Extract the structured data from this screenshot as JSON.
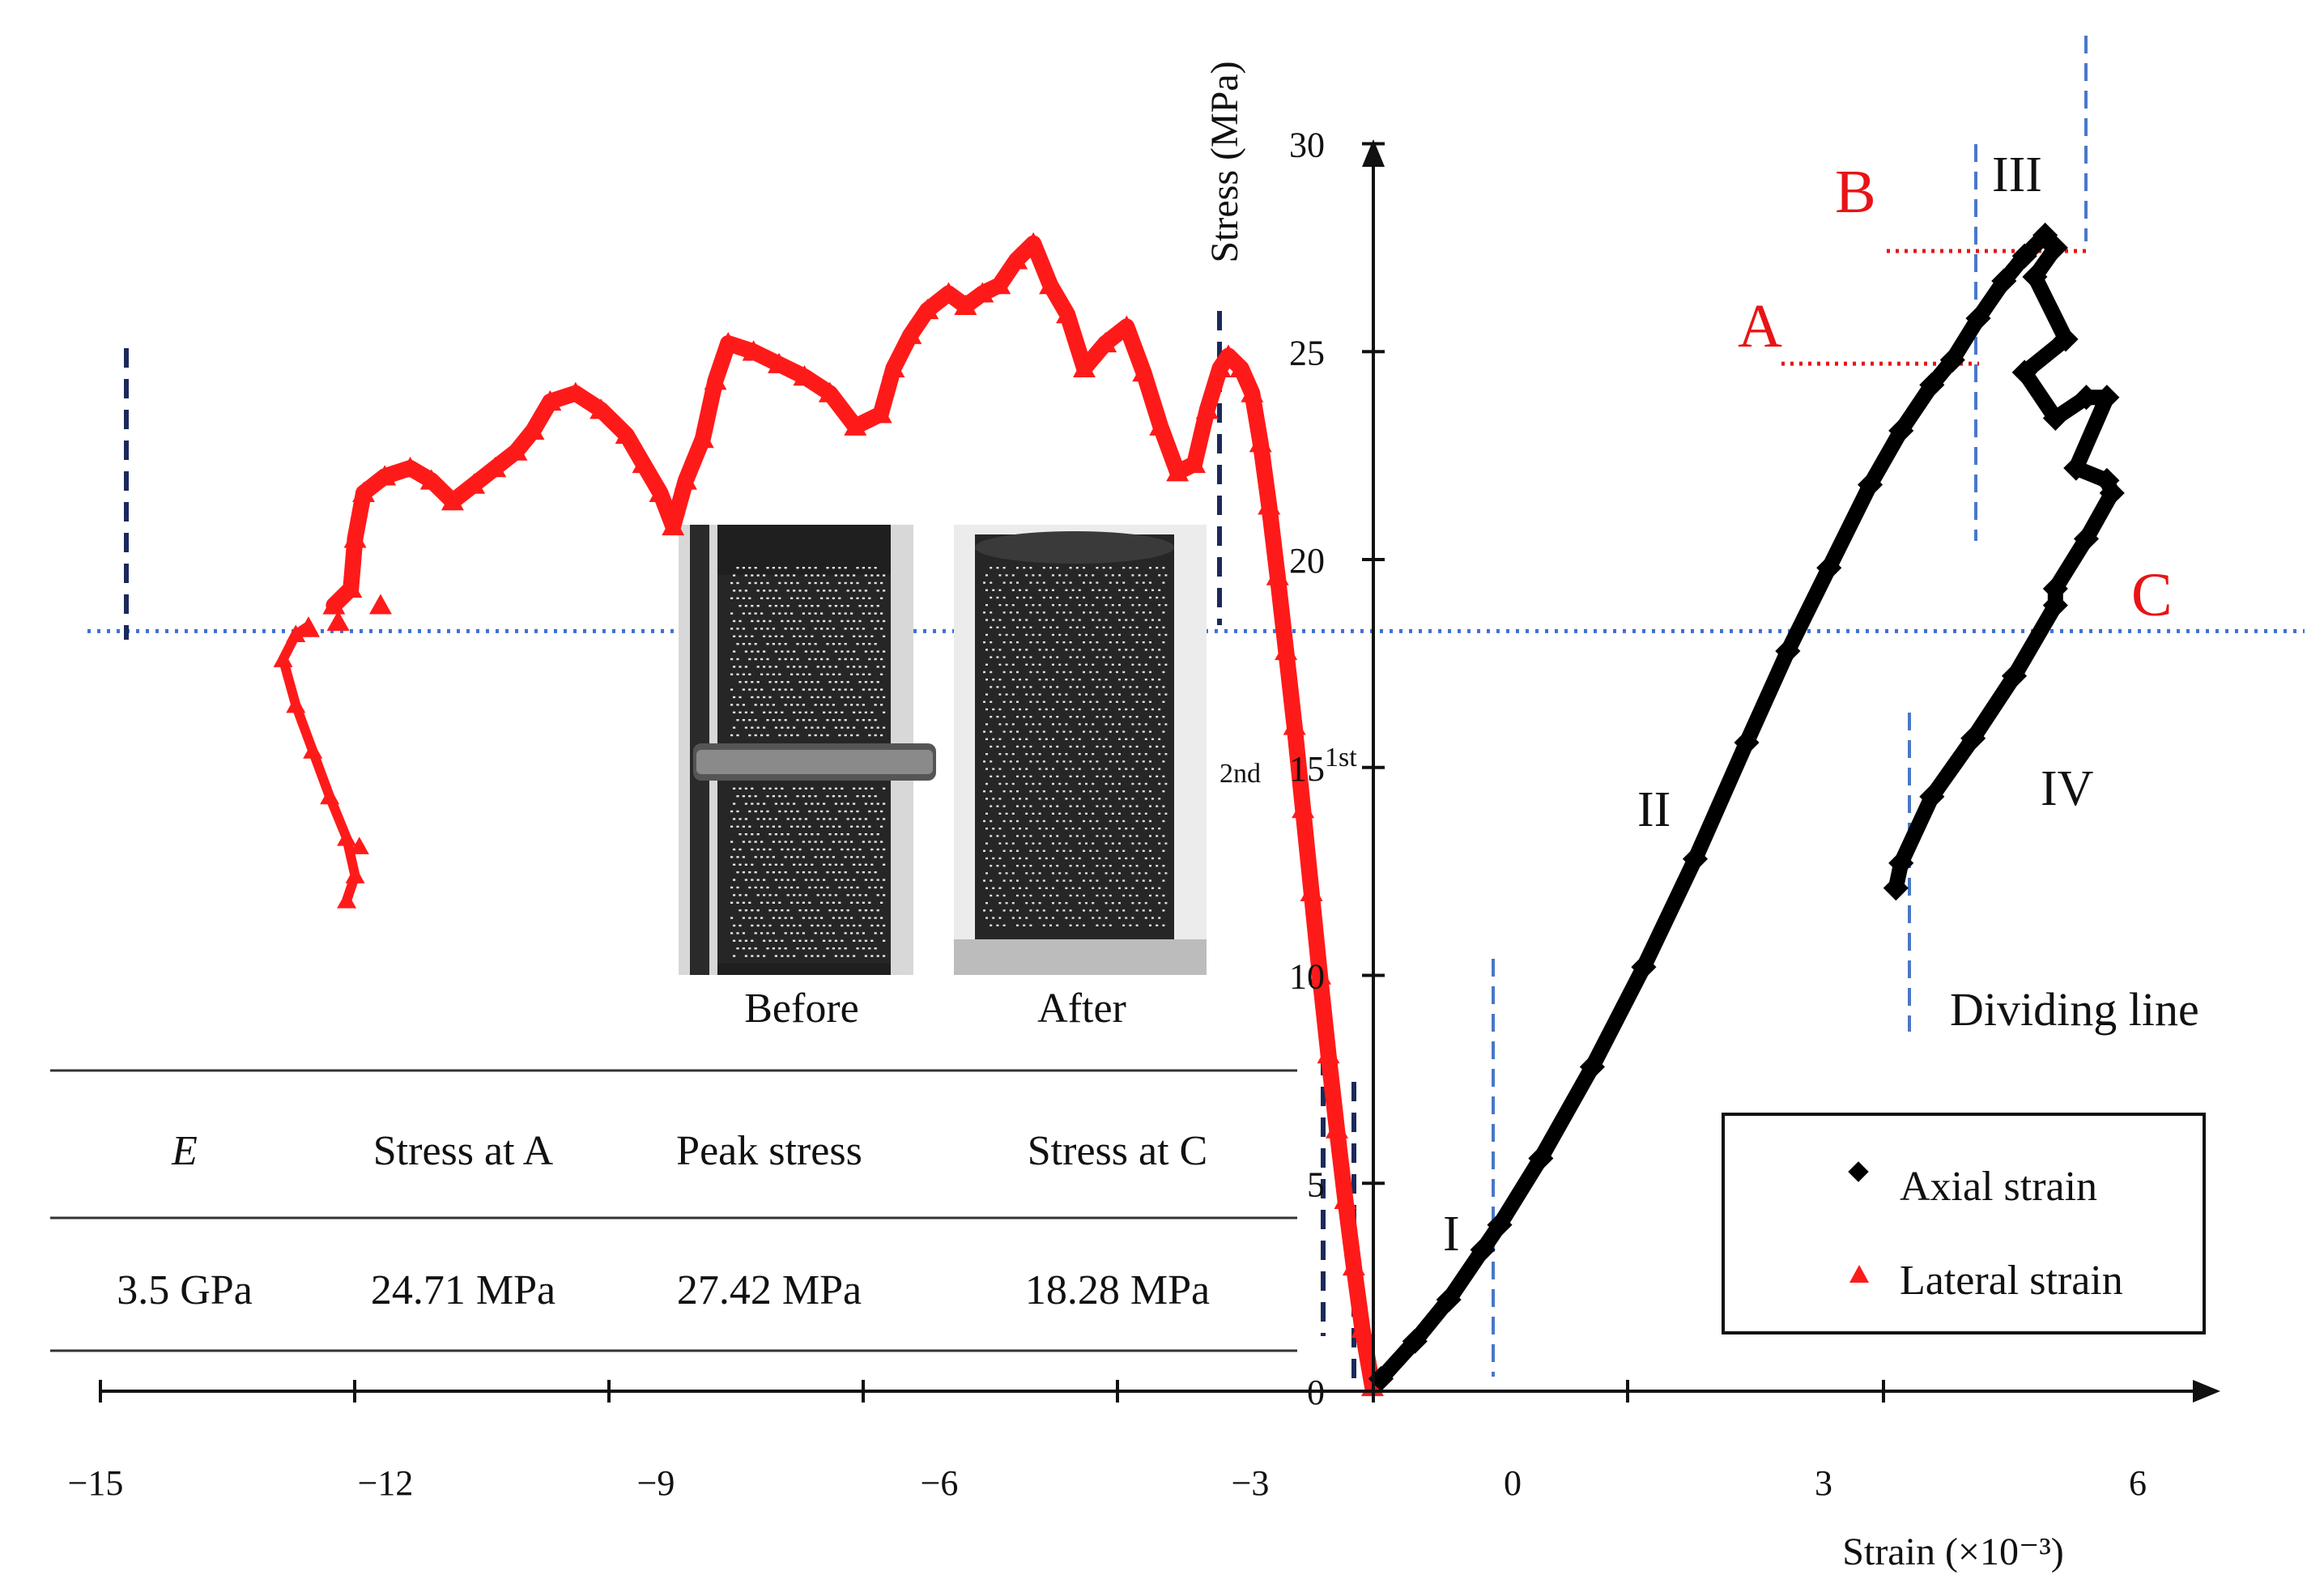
{
  "colors": {
    "axial": "#000000",
    "lateral": "#ff1a1a",
    "annotation_red": "#e81416",
    "dividing_line_blue": "#4a78c8",
    "threshold_blue": "#3f6fd6",
    "navy_dashed": "#1b2a5a"
  },
  "chart_data": {
    "type": "scatter",
    "xlabel": "Strain (×10⁻³)",
    "ylabel": "Stress (MPa)",
    "xlim": [
      -15,
      6.5
    ],
    "ylim": [
      0,
      30
    ],
    "x_ticks": [
      "−15",
      "−12",
      "−9",
      "−6",
      "−3",
      "0",
      "3",
      "6"
    ],
    "y_ticks": [
      "0",
      "5",
      "10",
      "15",
      "20",
      "25",
      "30"
    ],
    "grid": false,
    "legend_position": "bottom-right",
    "legend": [
      "Axial strain",
      "Lateral strain"
    ],
    "series": [
      {
        "name": "Axial strain",
        "marker": "diamond",
        "points": [
          [
            -1.4,
            0.3
          ],
          [
            -1.0,
            1.2
          ],
          [
            -0.6,
            2.2
          ],
          [
            -0.2,
            3.4
          ],
          [
            0.0,
            4.0
          ],
          [
            0.4,
            5.6
          ],
          [
            0.9,
            7.8
          ],
          [
            1.4,
            10.2
          ],
          [
            1.9,
            12.8
          ],
          [
            2.4,
            15.6
          ],
          [
            2.8,
            17.8
          ],
          [
            3.2,
            19.8
          ],
          [
            3.6,
            21.8
          ],
          [
            3.9,
            23.1
          ],
          [
            4.2,
            24.2
          ],
          [
            4.4,
            24.8
          ],
          [
            4.65,
            25.8
          ],
          [
            4.9,
            26.7
          ],
          [
            5.1,
            27.3
          ],
          [
            5.3,
            27.8
          ],
          [
            5.4,
            27.5
          ],
          [
            5.2,
            26.8
          ],
          [
            5.5,
            25.3
          ],
          [
            5.1,
            24.5
          ],
          [
            5.4,
            23.4
          ],
          [
            5.7,
            23.9
          ],
          [
            5.9,
            23.9
          ],
          [
            5.6,
            22.2
          ],
          [
            5.9,
            21.9
          ],
          [
            5.95,
            21.6
          ],
          [
            5.7,
            20.5
          ],
          [
            5.4,
            19.3
          ],
          [
            5.4,
            18.9
          ],
          [
            5.0,
            17.2
          ],
          [
            4.6,
            15.7
          ],
          [
            4.2,
            14.3
          ],
          [
            3.9,
            12.7
          ],
          [
            3.85,
            12.1
          ]
        ]
      },
      {
        "name": "Lateral strain",
        "marker": "triangle",
        "points": [
          [
            -1.5,
            0.1
          ],
          [
            -1.62,
            1.5
          ],
          [
            -1.72,
            3.0
          ],
          [
            -1.82,
            4.6
          ],
          [
            -1.92,
            6.3
          ],
          [
            -2.02,
            8.1
          ],
          [
            -2.12,
            10.0
          ],
          [
            -2.22,
            12.0
          ],
          [
            -2.32,
            14.0
          ],
          [
            -2.42,
            16.0
          ],
          [
            -2.52,
            17.8
          ],
          [
            -2.62,
            19.6
          ],
          [
            -2.72,
            21.3
          ],
          [
            -2.82,
            22.8
          ],
          [
            -2.92,
            24.0
          ],
          [
            -3.05,
            24.6
          ],
          [
            -3.2,
            24.9
          ],
          [
            -3.3,
            24.6
          ],
          [
            -3.45,
            23.6
          ],
          [
            -3.6,
            22.3
          ],
          [
            -3.8,
            22.1
          ],
          [
            -4.0,
            23.2
          ],
          [
            -4.2,
            24.5
          ],
          [
            -4.4,
            25.6
          ],
          [
            -4.65,
            25.2
          ],
          [
            -4.9,
            24.6
          ],
          [
            -5.1,
            25.9
          ],
          [
            -5.3,
            26.6
          ],
          [
            -5.5,
            27.6
          ],
          [
            -5.7,
            27.2
          ],
          [
            -5.9,
            26.6
          ],
          [
            -6.1,
            26.4
          ],
          [
            -6.3,
            26.1
          ],
          [
            -6.5,
            26.4
          ],
          [
            -6.75,
            26.0
          ],
          [
            -6.95,
            25.4
          ],
          [
            -7.15,
            24.6
          ],
          [
            -7.3,
            23.5
          ],
          [
            -7.6,
            23.2
          ],
          [
            -7.9,
            24.0
          ],
          [
            -8.2,
            24.4
          ],
          [
            -8.5,
            24.7
          ],
          [
            -8.8,
            25.0
          ],
          [
            -9.1,
            25.2
          ],
          [
            -9.25,
            24.3
          ],
          [
            -9.4,
            22.9
          ],
          [
            -9.6,
            21.9
          ],
          [
            -9.75,
            20.8
          ],
          [
            -9.9,
            21.6
          ],
          [
            -10.1,
            22.3
          ],
          [
            -10.3,
            23.0
          ],
          [
            -10.6,
            23.6
          ],
          [
            -10.9,
            24.0
          ],
          [
            -11.2,
            23.8
          ],
          [
            -11.4,
            23.1
          ],
          [
            -11.6,
            22.6
          ],
          [
            -11.85,
            22.2
          ],
          [
            -12.1,
            21.8
          ],
          [
            -12.35,
            21.4
          ],
          [
            -12.6,
            21.9
          ],
          [
            -12.85,
            22.2
          ],
          [
            -13.15,
            22.0
          ],
          [
            -13.4,
            21.6
          ],
          [
            -13.5,
            20.5
          ],
          [
            -13.55,
            19.3
          ],
          [
            -13.75,
            18.9
          ],
          [
            -14.05,
            18.4
          ],
          [
            -14.2,
            18.2
          ],
          [
            -14.35,
            17.6
          ],
          [
            -14.2,
            16.5
          ],
          [
            -14.0,
            15.4
          ],
          [
            -13.8,
            14.3
          ],
          [
            -13.6,
            13.3
          ],
          [
            -13.5,
            12.4
          ],
          [
            -13.6,
            11.8
          ],
          [
            -13.45,
            13.1
          ]
        ]
      }
    ],
    "annotations": {
      "points": [
        {
          "label": "A",
          "stress": 24.71
        },
        {
          "label": "B",
          "stress": 27.42
        },
        {
          "label": "C",
          "stress": 18.28
        }
      ],
      "stages": [
        "I",
        "II",
        "III",
        "IV"
      ],
      "dividing_line_label": "Dividing line",
      "threshold_stress": 18.28,
      "lateral_markers": [
        "2nd",
        "1st"
      ]
    },
    "table": {
      "headers": [
        "E",
        "Stress at A",
        "Peak stress",
        "Stress at C"
      ],
      "values": [
        "3.5 GPa",
        "24.71  MPa",
        "27.42  MPa",
        "18.28 MPa"
      ]
    },
    "inset_photos": [
      "Before",
      "After"
    ]
  }
}
